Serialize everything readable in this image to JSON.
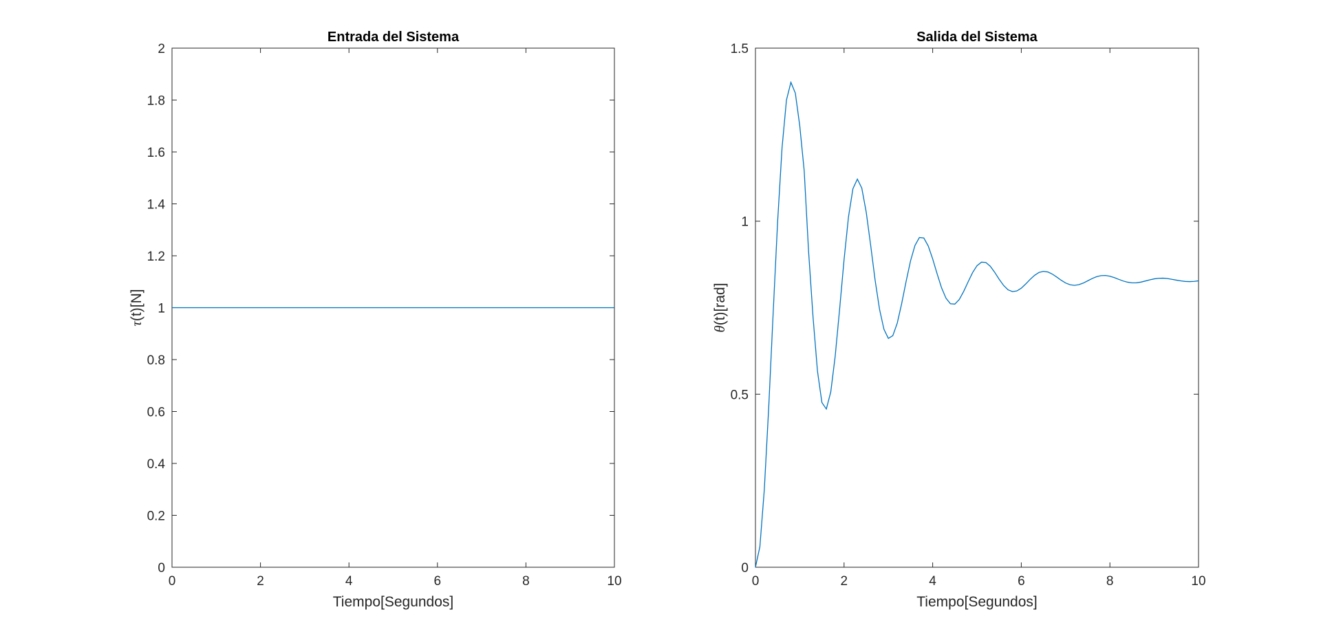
{
  "chart_data": [
    {
      "type": "line",
      "title": "Entrada del Sistema",
      "xlabel": "Tiempo[Segundos]",
      "ylabel_symbol": "τ",
      "ylabel_text": "(t)[N]",
      "xlim": [
        0,
        10
      ],
      "ylim": [
        0,
        2
      ],
      "xticks": [
        0,
        2,
        4,
        6,
        8,
        10
      ],
      "yticks": [
        0,
        0.2,
        0.4,
        0.6,
        0.8,
        1,
        1.2,
        1.4,
        1.6,
        1.8,
        2
      ],
      "grid": true,
      "series_color": "#0072bd",
      "series": [
        {
          "x": [
            0,
            10
          ],
          "y": [
            1,
            1
          ]
        }
      ]
    },
    {
      "type": "line",
      "title": "Salida del Sistema",
      "xlabel": "Tiempo[Segundos]",
      "ylabel_symbol": "θ",
      "ylabel_text": "(t)[rad]",
      "xlim": [
        0,
        10
      ],
      "ylim": [
        0,
        1.5
      ],
      "xticks": [
        0,
        2,
        4,
        6,
        8,
        10
      ],
      "yticks": [
        0,
        0.5,
        1,
        1.5
      ],
      "grid": true,
      "series_color": "#0072bd",
      "series": [
        {
          "x": [
            0,
            0.1,
            0.2,
            0.3,
            0.4,
            0.5,
            0.6,
            0.7,
            0.8,
            0.9,
            1.0,
            1.1,
            1.2,
            1.3,
            1.4,
            1.5,
            1.6,
            1.7,
            1.8,
            1.9,
            2.0,
            2.1,
            2.2,
            2.3,
            2.4,
            2.5,
            2.6,
            2.7,
            2.8,
            2.9,
            3.0,
            3.1,
            3.2,
            3.3,
            3.4,
            3.5,
            3.6,
            3.7,
            3.8,
            3.9,
            4.0,
            4.1,
            4.2,
            4.3,
            4.4,
            4.5,
            4.6,
            4.7,
            4.8,
            4.9,
            5.0,
            5.1,
            5.2,
            5.3,
            5.4,
            5.5,
            5.6,
            5.7,
            5.8,
            5.9,
            6.0,
            6.1,
            6.2,
            6.3,
            6.4,
            6.5,
            6.6,
            6.7,
            6.8,
            6.9,
            7.0,
            7.1,
            7.2,
            7.3,
            7.4,
            7.5,
            7.6,
            7.7,
            7.8,
            7.9,
            8.0,
            8.1,
            8.2,
            8.3,
            8.4,
            8.5,
            8.6,
            8.7,
            8.8,
            8.9,
            9.0,
            9.1,
            9.2,
            9.3,
            9.4,
            9.5,
            9.6,
            9.7,
            9.8,
            9.9,
            10.0
          ],
          "y": [
            0,
            0.0593,
            0.2241,
            0.4631,
            0.7354,
            0.9977,
            1.2116,
            1.35,
            1.4012,
            1.3701,
            1.2756,
            1.1459,
            0.9111,
            0.7224,
            0.5665,
            0.4758,
            0.4573,
            0.5067,
            0.6101,
            0.7462,
            0.8887,
            1.0125,
            1.0938,
            1.1215,
            1.0955,
            1.0262,
            0.9306,
            0.8301,
            0.7458,
            0.6875,
            0.6612,
            0.6692,
            0.7052,
            0.7618,
            0.8257,
            0.8851,
            0.9297,
            0.9528,
            0.9514,
            0.9283,
            0.8909,
            0.8479,
            0.8075,
            0.7774,
            0.7613,
            0.7603,
            0.7737,
            0.7971,
            0.8248,
            0.8512,
            0.8713,
            0.8815,
            0.8806,
            0.8698,
            0.8522,
            0.8322,
            0.8144,
            0.8018,
            0.7965,
            0.7984,
            0.8064,
            0.8185,
            0.8318,
            0.8435,
            0.8518,
            0.8551,
            0.8532,
            0.8471,
            0.8385,
            0.8293,
            0.8214,
            0.8163,
            0.8146,
            0.8165,
            0.8212,
            0.8277,
            0.8343,
            0.8396,
            0.8427,
            0.8432,
            0.841,
            0.8369,
            0.8318,
            0.8271,
            0.8236,
            0.8217,
            0.8219,
            0.8239,
            0.8271,
            0.8305,
            0.8333,
            0.835,
            0.8353,
            0.8342,
            0.832,
            0.8296,
            0.8274,
            0.8259,
            0.8254,
            0.826,
            0.8276
          ]
        }
      ]
    }
  ]
}
